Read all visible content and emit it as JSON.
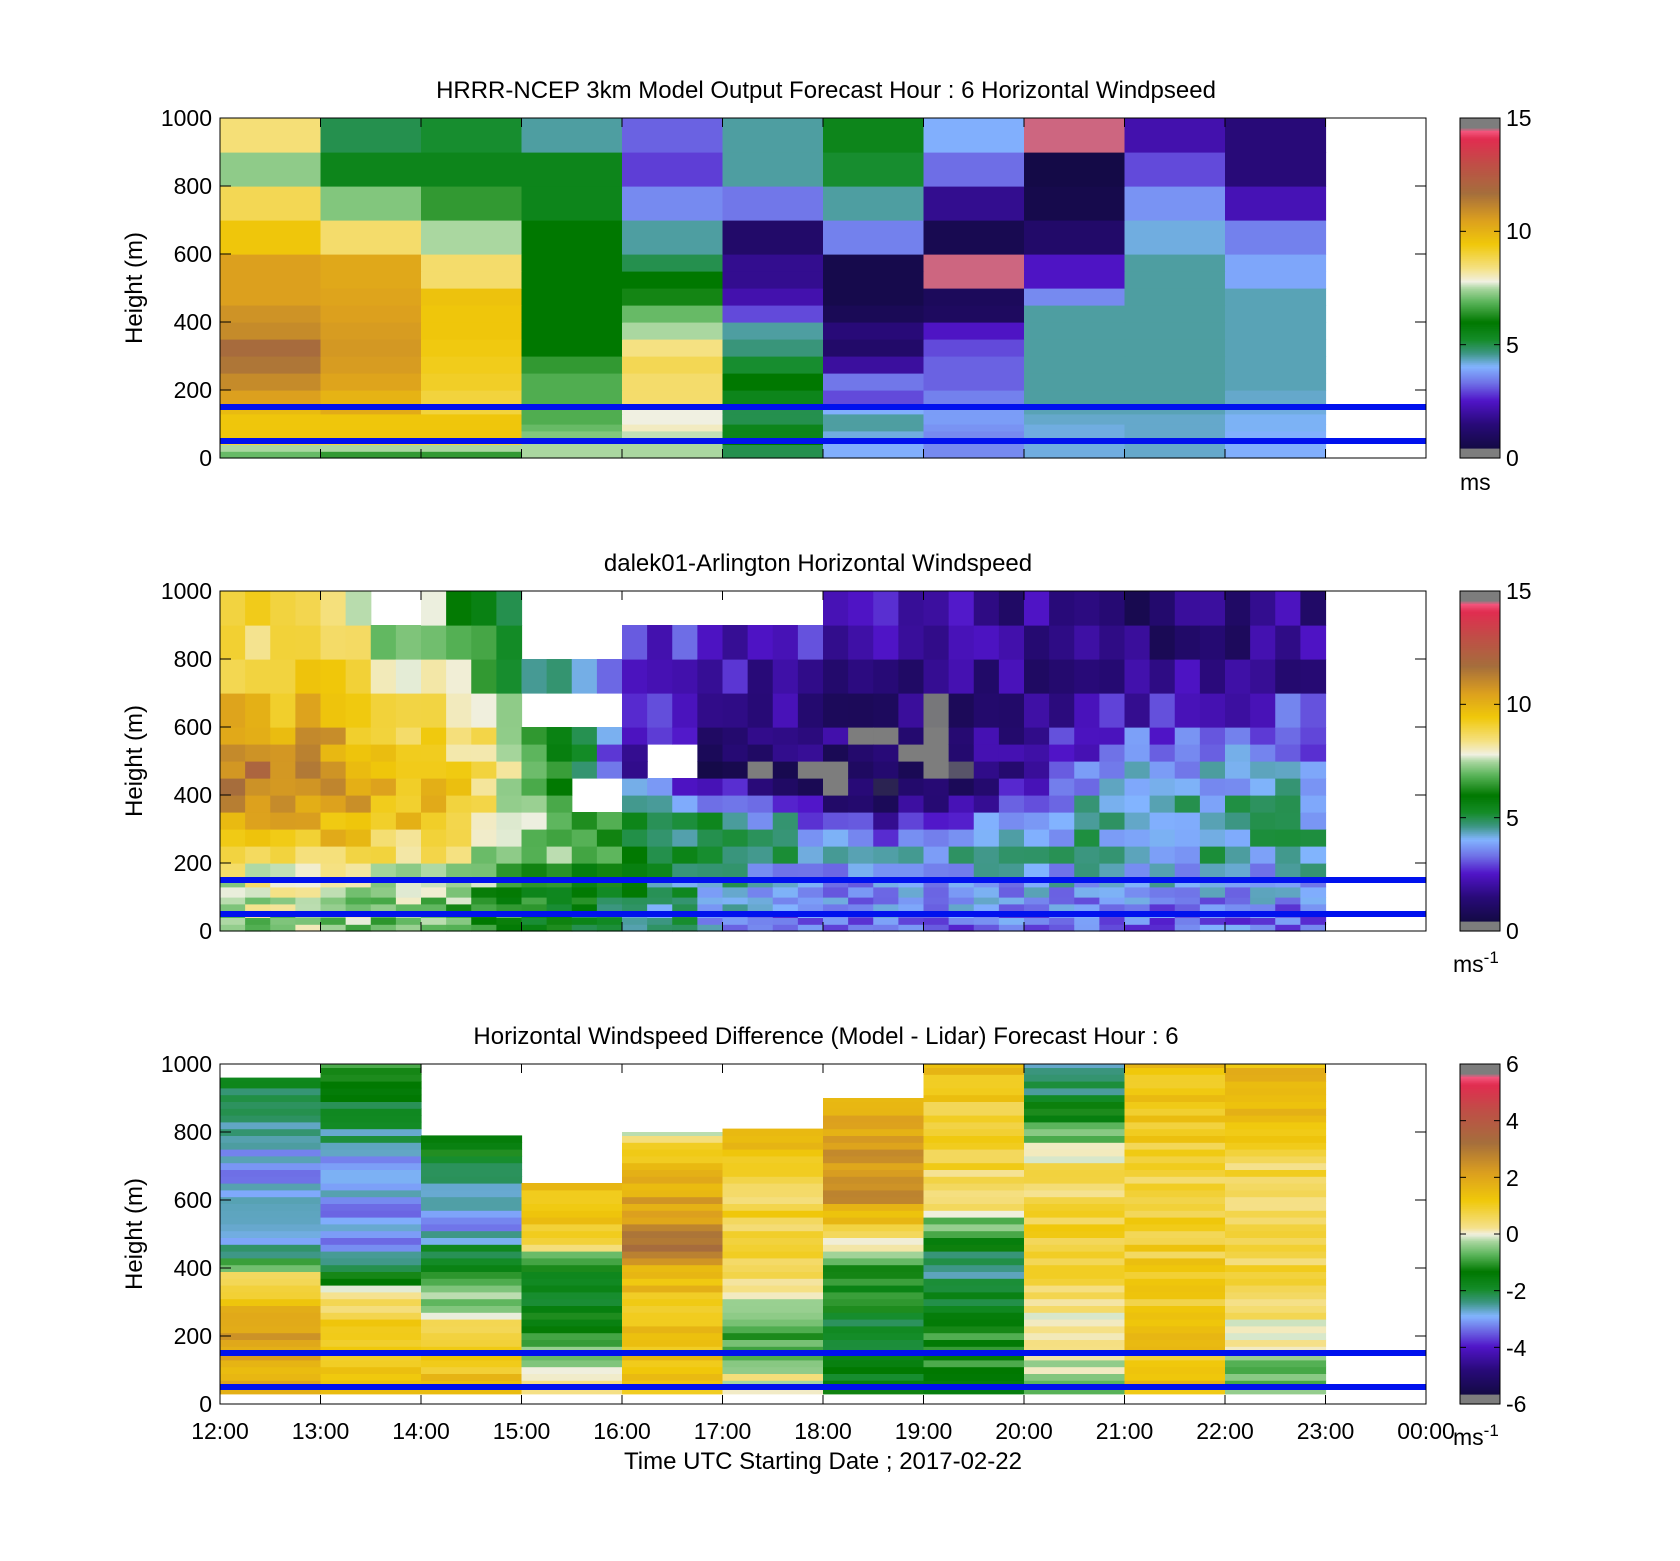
{
  "figure": {
    "background": "#ffffff"
  },
  "guide_lines": {
    "color": "#0011ee",
    "heights_m": [
      150,
      50
    ]
  },
  "chart_data": [
    {
      "type": "heatmap",
      "title": "HRRR-NCEP 3km Model Output   Forecast Hour : 6 Horizontal Windpseed",
      "ylabel": "Height (m)",
      "xlabel": "",
      "xlim_hours": [
        12,
        24
      ],
      "ylim": [
        0,
        1000
      ],
      "yticks": [
        "0",
        "200",
        "400",
        "600",
        "800",
        "1000"
      ],
      "xtick_labels": [],
      "colorbar": {
        "ticks": [
          "0",
          "5",
          "10",
          "15"
        ],
        "unit": "ms",
        "unit_superscript": "",
        "range": [
          0,
          15
        ]
      },
      "bins_m": [
        0,
        20,
        40,
        60,
        80,
        100,
        130,
        160,
        200,
        250,
        300,
        350,
        400,
        450,
        500,
        550,
        600,
        700,
        800,
        900,
        1000
      ],
      "grid_values": [
        [
          7.0,
          6.5,
          6.5,
          7.5,
          7.5,
          5.0,
          4.0,
          3.6,
          4.2,
          4.3,
          4.0
        ],
        [
          7.5,
          7.5,
          7.5,
          7.5,
          7.5,
          5.0,
          4.0,
          3.6,
          4.2,
          4.3,
          4.0
        ],
        [
          9.0,
          9.0,
          9.0,
          7.5,
          7.5,
          6.0,
          4.0,
          3.6,
          4.2,
          4.3,
          4.0
        ],
        [
          9.5,
          9.5,
          9.5,
          7.2,
          7.6,
          5.5,
          4.2,
          3.6,
          4.2,
          4.3,
          4.0
        ],
        [
          9.5,
          9.5,
          9.5,
          7.0,
          8.0,
          5.5,
          4.5,
          3.7,
          4.2,
          4.3,
          4.1
        ],
        [
          9.5,
          9.5,
          9.5,
          6.8,
          7.8,
          5.0,
          4.5,
          3.8,
          4.3,
          4.3,
          4.1
        ],
        [
          9.8,
          10.2,
          9.0,
          6.8,
          7.8,
          5.0,
          4.0,
          3.8,
          4.4,
          4.4,
          4.2
        ],
        [
          10.5,
          10.0,
          9.0,
          6.8,
          8.6,
          5.5,
          3.0,
          3.5,
          4.5,
          4.5,
          4.3
        ],
        [
          11.0,
          10.4,
          9.2,
          6.8,
          8.6,
          6.0,
          3.4,
          3.2,
          4.5,
          4.5,
          4.4
        ],
        [
          11.5,
          10.6,
          9.3,
          6.5,
          8.8,
          5.2,
          2.0,
          3.2,
          4.5,
          4.5,
          4.4
        ],
        [
          11.8,
          10.7,
          9.4,
          6.0,
          8.4,
          4.7,
          1.2,
          3.0,
          4.5,
          4.5,
          4.4
        ],
        [
          11.0,
          10.6,
          9.5,
          6.0,
          7.5,
          4.5,
          1.5,
          2.5,
          4.5,
          4.5,
          4.4
        ],
        [
          10.8,
          10.5,
          9.5,
          6.0,
          7.0,
          3.0,
          0.8,
          1.0,
          4.5,
          4.5,
          4.4
        ],
        [
          10.5,
          10.4,
          9.6,
          6.0,
          6.2,
          2.2,
          0.6,
          0.9,
          3.6,
          4.5,
          4.4
        ],
        [
          10.5,
          10.3,
          8.6,
          6.0,
          6.0,
          1.8,
          0.6,
          14.5,
          2.5,
          4.5,
          3.9
        ],
        [
          10.5,
          10.3,
          8.6,
          6.0,
          5.0,
          1.8,
          0.6,
          14.5,
          2.5,
          4.5,
          3.9
        ],
        [
          9.5,
          8.6,
          7.5,
          6.0,
          4.5,
          1.2,
          3.5,
          0.7,
          1.2,
          4.2,
          3.5
        ],
        [
          8.8,
          7.2,
          6.5,
          5.5,
          3.6,
          3.4,
          4.5,
          1.8,
          0.6,
          3.7,
          2.3
        ],
        [
          7.3,
          5.5,
          5.5,
          5.5,
          2.9,
          4.5,
          5.2,
          3.3,
          0.5,
          3.0,
          1.5
        ],
        [
          8.5,
          5.0,
          5.2,
          4.5,
          3.2,
          4.5,
          5.5,
          4.0,
          14.5,
          2.2,
          1.5
        ]
      ]
    },
    {
      "type": "heatmap",
      "title": "dalek01-Arlington  Horizontal Windspeed",
      "ylabel": "Height (m)",
      "xlabel": "",
      "xlim_hours": [
        12,
        24
      ],
      "ylim": [
        0,
        1000
      ],
      "yticks": [
        "0",
        "200",
        "400",
        "600",
        "800",
        "1000"
      ],
      "xtick_labels": [],
      "colorbar": {
        "ticks": [
          "0",
          "5",
          "10",
          "15"
        ],
        "unit": "ms",
        "unit_superscript": "-1",
        "range": [
          0,
          15
        ]
      },
      "data_end_hour": 22.95,
      "bin_minutes": 15,
      "bins_m": [
        0,
        20,
        40,
        60,
        80,
        100,
        130,
        160,
        200,
        250,
        300,
        350,
        400,
        450,
        500,
        550,
        600,
        700,
        800,
        900,
        1000
      ],
      "vertical_profile_m": [
        200,
        350,
        420,
        460,
        600,
        800
      ],
      "profile_keys_hours": [
        12,
        13,
        14,
        14.6,
        15,
        15.5,
        16,
        16.5,
        17,
        17.5,
        18,
        18.5,
        19,
        19.5,
        20,
        20.5,
        21,
        21.5,
        22,
        23
      ],
      "profile_values": [
        [
          8.5,
          10.5,
          11.5,
          11.5,
          10.5,
          9.0
        ],
        [
          8.5,
          10.5,
          11.0,
          11.0,
          10.0,
          8.5
        ],
        [
          8.0,
          9.5,
          9.5,
          9.5,
          9.0,
          7.0
        ],
        [
          7.5,
          8.5,
          8.5,
          8.5,
          8.0,
          6.0
        ],
        [
          7.0,
          7.5,
          7.2,
          7.0,
          5.5,
          4.5
        ],
        [
          6.5,
          7.0,
          6.0,
          5.0,
          4.5,
          4.0
        ],
        [
          6.0,
          5.5,
          4.5,
          2.0,
          2.5,
          3.0
        ],
        [
          5.5,
          4.8,
          3.0,
          1.3,
          2.0,
          3.0
        ],
        [
          5.0,
          4.5,
          2.5,
          1.0,
          1.5,
          2.5
        ],
        [
          4.5,
          4.0,
          1.5,
          0.8,
          1.5,
          2.5
        ],
        [
          4.5,
          2.5,
          1.0,
          0.8,
          1.5,
          2.2
        ],
        [
          4.5,
          1.5,
          0.8,
          0.6,
          1.0,
          2.0
        ],
        [
          4.5,
          2.5,
          1.2,
          0.6,
          0.8,
          2.0
        ],
        [
          4.5,
          3.0,
          2.0,
          1.5,
          1.5,
          2.0
        ],
        [
          4.5,
          4.0,
          3.0,
          2.5,
          2.0,
          1.8
        ],
        [
          4.5,
          4.2,
          3.8,
          3.5,
          2.5,
          1.5
        ],
        [
          4.5,
          4.3,
          4.0,
          3.8,
          3.0,
          1.2
        ],
        [
          4.5,
          4.3,
          4.2,
          4.0,
          3.2,
          1.2
        ],
        [
          4.5,
          4.4,
          4.3,
          4.0,
          3.2,
          1.5
        ],
        [
          4.5,
          4.4,
          4.3,
          4.0,
          3.0,
          2.0
        ]
      ],
      "gaps": [
        [
          15.0,
          16.0,
          780,
          1000
        ],
        [
          15.0,
          16.0,
          600,
          700
        ],
        [
          13.4,
          14.0,
          880,
          1000
        ],
        [
          16.0,
          17.0,
          870,
          1000
        ],
        [
          17.0,
          18.0,
          900,
          1000
        ],
        [
          16.25,
          16.7,
          470,
          560
        ],
        [
          15.4,
          15.9,
          330,
          430
        ]
      ]
    },
    {
      "type": "heatmap",
      "title": "Horizontal Windspeed Difference (Model - Lidar) Forecast Hour : 6",
      "ylabel": "Height (m)",
      "xlabel": "Time UTC  Starting Date ; 2017-02-22",
      "xlim_hours": [
        12,
        24
      ],
      "ylim": [
        0,
        1000
      ],
      "yticks": [
        "0",
        "200",
        "400",
        "600",
        "800",
        "1000"
      ],
      "xtick_labels": [
        "12:00",
        "13:00",
        "14:00",
        "15:00",
        "16:00",
        "17:00",
        "18:00",
        "19:00",
        "20:00",
        "21:00",
        "22:00",
        "23:00",
        "00:00"
      ],
      "colorbar": {
        "ticks": [
          "-6",
          "-4",
          "-2",
          "0",
          "2",
          "4",
          "6"
        ],
        "unit": "ms",
        "unit_superscript": "-1",
        "range": [
          -6,
          6
        ]
      },
      "columns": [
        {
          "top_m": 960,
          "profile_m": [
            0,
            200,
            380,
            450,
            700,
            960
          ],
          "values": [
            1.5,
            2.2,
            0.5,
            -2.5,
            -3.0,
            -2.0
          ]
        },
        {
          "top_m": 1000,
          "profile_m": [
            0,
            200,
            300,
            450,
            700,
            1000
          ],
          "values": [
            1.2,
            1.2,
            0.5,
            -3.0,
            -3.0,
            -1.0
          ]
        },
        {
          "top_m": 790,
          "profile_m": [
            0,
            200,
            350,
            550,
            790
          ],
          "values": [
            1.5,
            1.0,
            -1.0,
            -3.2,
            -1.0
          ]
        },
        {
          "top_m": 650,
          "profile_m": [
            0,
            200,
            370,
            500,
            650
          ],
          "values": [
            0.5,
            -1.0,
            -2.2,
            1.2,
            1.5
          ]
        },
        {
          "top_m": 800,
          "profile_m": [
            0,
            200,
            380,
            450,
            720,
            800
          ],
          "values": [
            1.3,
            1.3,
            1.4,
            3.0,
            1.2,
            0.0
          ]
        },
        {
          "top_m": 810,
          "profile_m": [
            0,
            200,
            450,
            600,
            810
          ],
          "values": [
            0.5,
            -0.8,
            0.8,
            0.8,
            1.5
          ]
        },
        {
          "top_m": 900,
          "profile_m": [
            0,
            200,
            420,
            600,
            900
          ],
          "values": [
            -1.5,
            -2.0,
            -0.8,
            2.5,
            2.0
          ]
        },
        {
          "top_m": 1000,
          "profile_m": [
            0,
            200,
            400,
            600,
            1000
          ],
          "values": [
            -1.5,
            -1.0,
            -2.5,
            0.5,
            1.3
          ]
        },
        {
          "top_m": 1000,
          "profile_m": [
            0,
            200,
            400,
            700,
            1000
          ],
          "values": [
            -0.5,
            0.0,
            1.0,
            0.5,
            -3.0
          ]
        },
        {
          "top_m": 1000,
          "profile_m": [
            0,
            200,
            400,
            700,
            1000
          ],
          "values": [
            1.3,
            1.2,
            1.0,
            0.8,
            1.5
          ]
        },
        {
          "top_m": 1000,
          "profile_m": [
            0,
            200,
            400,
            700,
            820,
            1000
          ],
          "values": [
            -1.0,
            0.0,
            0.8,
            0.6,
            1.5,
            1.5
          ]
        }
      ]
    }
  ]
}
